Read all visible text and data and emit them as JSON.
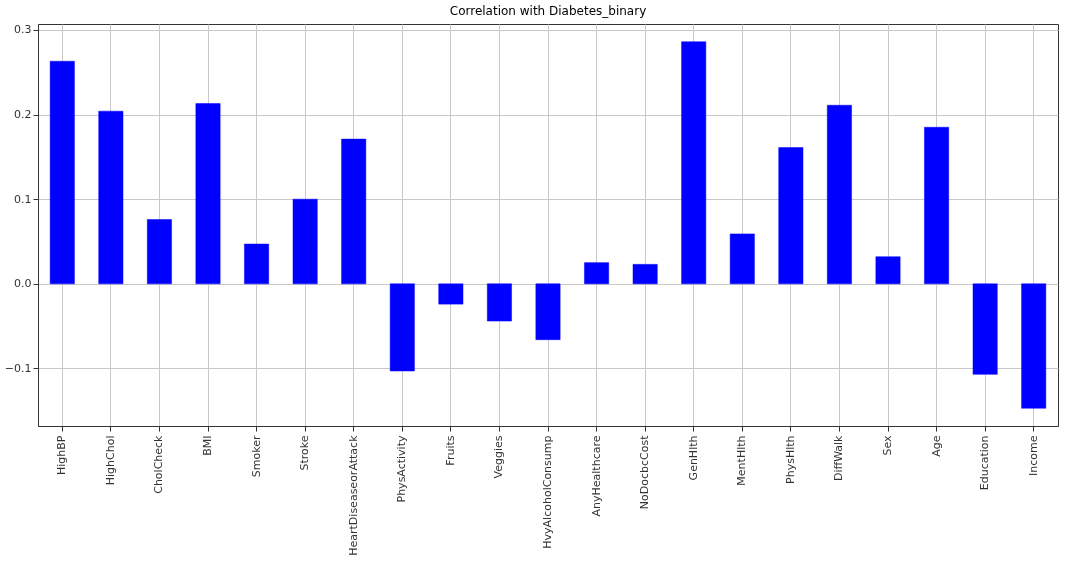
{
  "chart_data": {
    "type": "bar",
    "title": "Correlation with Diabetes_binary",
    "categories": [
      "HighBP",
      "HighChol",
      "CholCheck",
      "BMI",
      "Smoker",
      "Stroke",
      "HeartDiseaseorAttack",
      "PhysActivity",
      "Fruits",
      "Veggies",
      "HvyAlcoholConsump",
      "AnyHealthcare",
      "NoDocbcCost",
      "GenHlth",
      "MentHlth",
      "PhysHlth",
      "DiffWalk",
      "Sex",
      "Age",
      "Education",
      "Income"
    ],
    "values": [
      0.263,
      0.204,
      0.076,
      0.213,
      0.047,
      0.1,
      0.171,
      -0.103,
      -0.024,
      -0.044,
      -0.066,
      0.025,
      0.023,
      0.286,
      0.059,
      0.161,
      0.211,
      0.032,
      0.185,
      -0.107,
      -0.147
    ],
    "color": "#0000ff",
    "ylim": [
      -0.168,
      0.307
    ],
    "yticks": [
      {
        "value": -0.1,
        "label": "−0.1"
      },
      {
        "value": 0,
        "label": "0.0"
      },
      {
        "value": 0.1,
        "label": "0.1"
      },
      {
        "value": 0.2,
        "label": "0.2"
      },
      {
        "value": 0.3,
        "label": "0.3"
      }
    ],
    "grid": true
  }
}
